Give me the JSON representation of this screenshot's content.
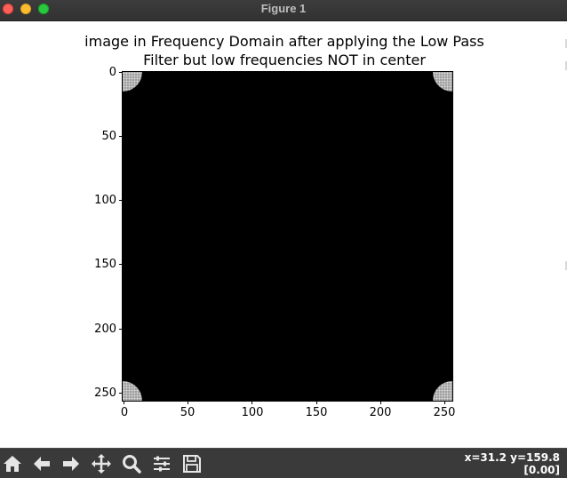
{
  "window": {
    "title": "Figure 1"
  },
  "plot": {
    "title_line1": "image in Frequency Domain after applying the Low Pass",
    "title_line2": "Filter but low frequencies NOT in center",
    "y_ticks": [
      "0",
      "50",
      "100",
      "150",
      "200",
      "250"
    ],
    "x_ticks": [
      "0",
      "50",
      "100",
      "150",
      "200",
      "250"
    ]
  },
  "chart_data": {
    "type": "heatmap",
    "title": "image in Frequency Domain after applying the Low Pass Filter but low frequencies NOT in center",
    "xlabel": "",
    "ylabel": "",
    "xlim": [
      0,
      256
    ],
    "ylim": [
      256,
      0
    ],
    "x_ticks": [
      0,
      50,
      100,
      150,
      200,
      250
    ],
    "y_ticks": [
      0,
      50,
      100,
      150,
      200,
      250
    ],
    "colormap": "gray",
    "background_value": "black",
    "bright_regions": [
      "top-left corner",
      "top-right corner",
      "bottom-left corner",
      "bottom-right corner"
    ]
  },
  "toolbar": {
    "buttons": [
      "home-icon",
      "back-arrow-icon",
      "forward-arrow-icon",
      "pan-icon",
      "zoom-icon",
      "configure-subplots-icon",
      "save-icon"
    ],
    "coords_line1": "x=31.2 y=159.8",
    "coords_line2": "[0.00]"
  },
  "colors": {
    "toolbar_bg": "#3a3a3a",
    "titlebar_bg": "#363636",
    "icon": "#e6e6e6"
  }
}
